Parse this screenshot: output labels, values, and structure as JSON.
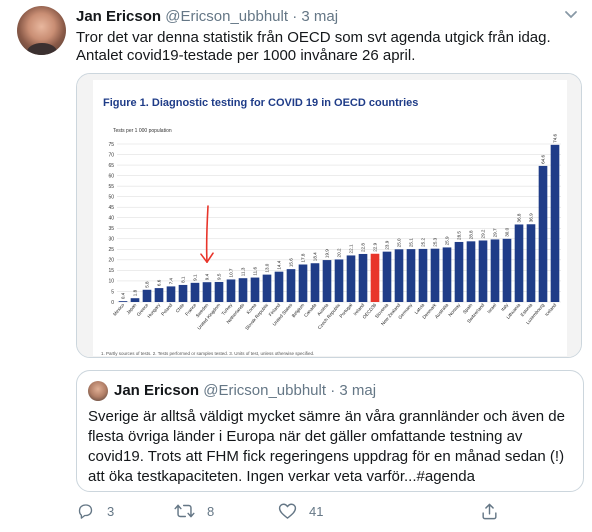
{
  "tweet": {
    "author_name": "Jan Ericson",
    "author_handle": "@Ericson_ubbhult",
    "separator": "·",
    "date": "3 maj",
    "text_line1": "Tror det var denna statistik från OECD som svt agenda utgick från idag.",
    "text_line2": "Antalet covid19-testade per 1000 invånare 26 april."
  },
  "chart_data": {
    "type": "bar",
    "title": "Figure 1. Diagnostic testing for COVID 19 in OECD countries",
    "ylabel": "Tests per 1 000 population",
    "ylim": [
      0,
      75
    ],
    "yticks": [
      0,
      5,
      10,
      15,
      20,
      25,
      30,
      35,
      40,
      45,
      50,
      55,
      60,
      65,
      70,
      75
    ],
    "grid": true,
    "colors": {
      "bar": "#1f3c88",
      "highlight": "#e8352b",
      "annotation": "#e8352b"
    },
    "highlight_category": "OECD36",
    "annotated_category": "Sweden",
    "categories": [
      "Mexico",
      "Japan",
      "Greece",
      "Hungary",
      "Poland",
      "Chile",
      "France",
      "Sweden",
      "United Kingdom",
      "Turkey",
      "Netherlands",
      "Korea",
      "Slovak Republic",
      "Finland",
      "United States",
      "Belgium",
      "Canada",
      "Austria",
      "Czech Republic",
      "Portugal",
      "Ireland",
      "OECD36",
      "Slovenia",
      "New Zealand",
      "Germany",
      "Latvia",
      "Denmark",
      "Australia",
      "Norway",
      "Spain",
      "Switzerland",
      "Israel",
      "Italy",
      "Lithuania",
      "Estonia",
      "Luxembourg",
      "Iceland"
    ],
    "values": [
      0.4,
      1.8,
      5.8,
      6.6,
      7.4,
      8.1,
      9.1,
      9.4,
      9.5,
      10.7,
      11.3,
      11.6,
      13.0,
      14.4,
      15.6,
      17.8,
      18.4,
      19.9,
      20.2,
      22.1,
      22.8,
      22.9,
      23.9,
      25.0,
      25.1,
      25.2,
      25.3,
      25.9,
      28.5,
      28.8,
      29.2,
      29.7,
      30.0,
      36.8,
      36.9,
      64.6,
      74.6
    ],
    "data_labels": [
      "0.4",
      "1.8",
      "5.8",
      "6.6",
      "7.4",
      "8.1",
      "9.1",
      "9.4",
      "9.5",
      "10.7",
      "11.3",
      "11.6",
      "13.0",
      "14.4",
      "15.6",
      "17.8",
      "18.4",
      "19.9",
      "20.2",
      "22.1",
      "22.8",
      "22.9",
      "23.9",
      "25.0",
      "25.1",
      "25.2",
      "25.3",
      "25.9",
      "28.5",
      "28.8",
      "29.2",
      "29.7",
      "30.0",
      "36.8",
      "36.9",
      "64.6",
      "74.6"
    ],
    "footnote": "1. Partly sources of tests. 2. Tests performed or samples tested. 3. Units of test, unless otherwise specified."
  },
  "quote": {
    "author_name": "Jan Ericson",
    "author_handle": "@Ericson_ubbhult",
    "separator": "·",
    "date": "3 maj",
    "line1": "Sverige är alltså väldigt mycket sämre än våra grannländer och även de",
    "line2": "flesta övriga länder i Europa när det gäller omfattande testning av",
    "line3": "covid19. Trots att FHM fick regeringens uppdrag för en månad sedan (!)",
    "line4": "att öka testkapaciteten. Ingen verkar veta varför...#agenda"
  },
  "actions": {
    "reply_count": "3",
    "retweet_count": "8",
    "like_count": "41"
  },
  "icons": [
    "caret-down-icon",
    "reply-icon",
    "retweet-icon",
    "like-icon",
    "share-icon"
  ]
}
